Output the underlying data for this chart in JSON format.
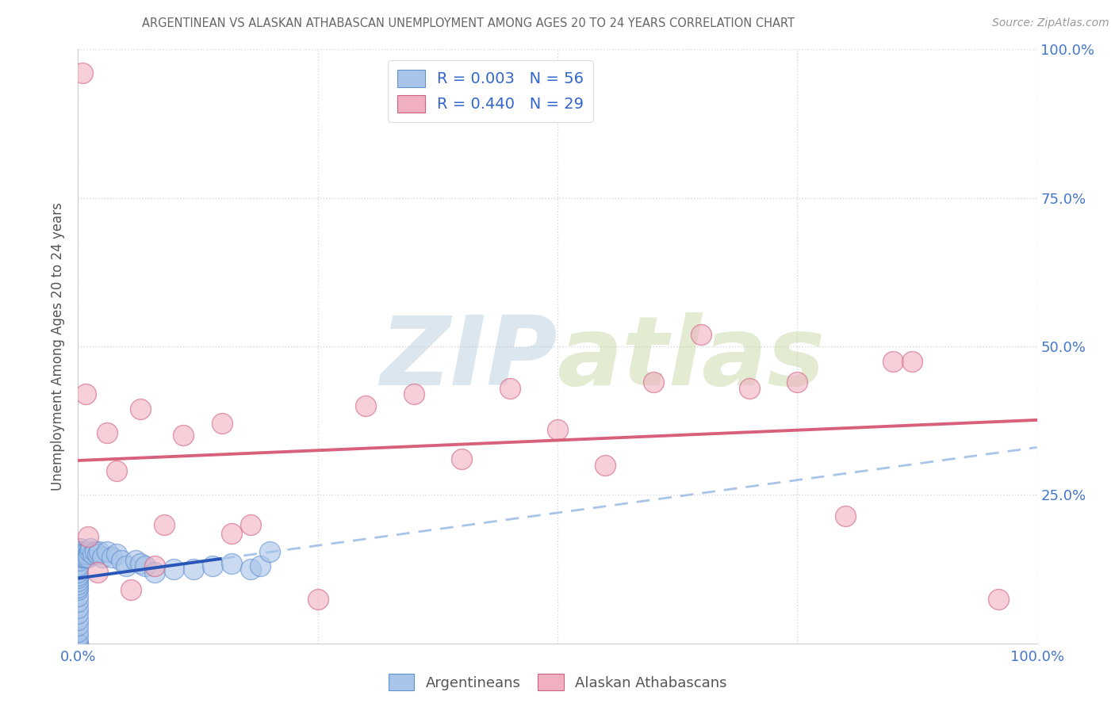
{
  "title": "ARGENTINEAN VS ALASKAN ATHABASCAN UNEMPLOYMENT AMONG AGES 20 TO 24 YEARS CORRELATION CHART",
  "source": "Source: ZipAtlas.com",
  "ylabel": "Unemployment Among Ages 20 to 24 years",
  "xlim": [
    0,
    1.0
  ],
  "ylim": [
    0,
    1.0
  ],
  "background_color": "#ffffff",
  "watermark": "ZIPatlas",
  "watermark_color_zip": "#b0c8e0",
  "watermark_color_atlas": "#c8d8b0",
  "blue_scatter_color": "#a8c4e8",
  "pink_scatter_color": "#f0b0c0",
  "blue_edge_color": "#6090d0",
  "pink_edge_color": "#d06080",
  "blue_line_color": "#2855b8",
  "pink_line_color": "#d8607a",
  "dashed_line_color": "#a8c4e8",
  "legend_text_color": "#3366cc",
  "title_color": "#666666",
  "axis_label_color": "#555555",
  "tick_color": "#4477cc",
  "grid_color": "#d8d8d8",
  "arg_x": [
    0.0,
    0.0,
    0.0,
    0.0,
    0.0,
    0.0,
    0.0,
    0.0,
    0.0,
    0.0,
    0.0,
    0.0,
    0.0,
    0.0,
    0.0,
    0.0,
    0.0,
    0.0,
    0.0,
    0.0,
    0.001,
    0.001,
    0.002,
    0.002,
    0.003,
    0.003,
    0.004,
    0.005,
    0.006,
    0.007,
    0.008,
    0.01,
    0.01,
    0.012,
    0.013,
    0.015,
    0.018,
    0.02,
    0.022,
    0.025,
    0.03,
    0.035,
    0.04,
    0.045,
    0.05,
    0.06,
    0.065,
    0.07,
    0.08,
    0.1,
    0.12,
    0.14,
    0.16,
    0.18,
    0.19,
    0.2
  ],
  "arg_y": [
    0.0,
    0.0,
    0.0,
    0.01,
    0.02,
    0.03,
    0.04,
    0.05,
    0.06,
    0.07,
    0.08,
    0.09,
    0.095,
    0.1,
    0.105,
    0.11,
    0.115,
    0.12,
    0.125,
    0.13,
    0.14,
    0.15,
    0.155,
    0.16,
    0.155,
    0.15,
    0.145,
    0.15,
    0.145,
    0.15,
    0.145,
    0.15,
    0.145,
    0.155,
    0.16,
    0.15,
    0.155,
    0.15,
    0.155,
    0.145,
    0.155,
    0.145,
    0.15,
    0.14,
    0.13,
    0.14,
    0.135,
    0.13,
    0.12,
    0.125,
    0.125,
    0.13,
    0.135,
    0.125,
    0.13,
    0.155
  ],
  "ath_x": [
    0.005,
    0.008,
    0.01,
    0.02,
    0.03,
    0.04,
    0.055,
    0.065,
    0.08,
    0.09,
    0.11,
    0.15,
    0.16,
    0.18,
    0.25,
    0.3,
    0.35,
    0.4,
    0.45,
    0.5,
    0.55,
    0.6,
    0.65,
    0.7,
    0.75,
    0.8,
    0.85,
    0.87,
    0.96
  ],
  "ath_y": [
    0.96,
    0.42,
    0.18,
    0.12,
    0.355,
    0.29,
    0.09,
    0.395,
    0.13,
    0.2,
    0.35,
    0.37,
    0.185,
    0.2,
    0.075,
    0.4,
    0.42,
    0.31,
    0.43,
    0.36,
    0.3,
    0.44,
    0.52,
    0.43,
    0.44,
    0.215,
    0.475,
    0.475,
    0.075
  ]
}
